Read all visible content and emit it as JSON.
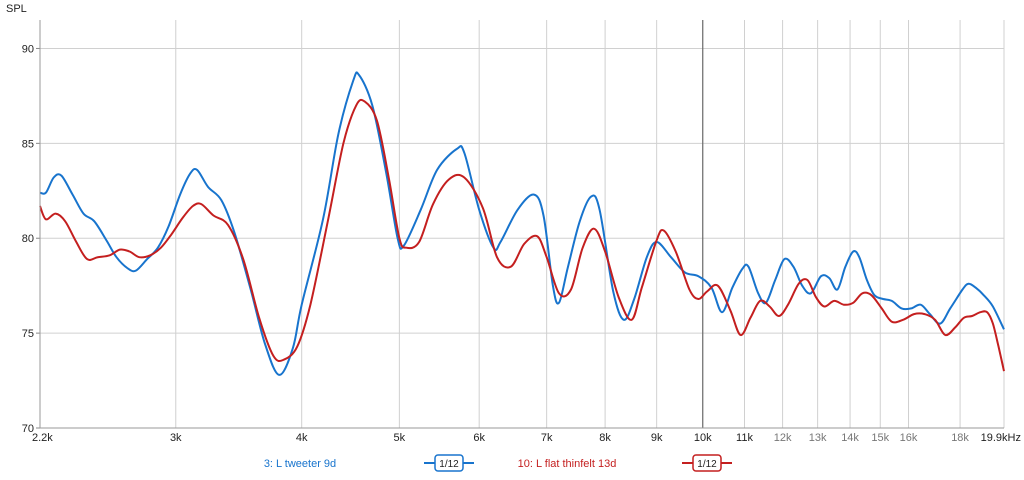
{
  "chart_data": {
    "type": "line",
    "y_axis_title": "SPL",
    "x_scale": "log",
    "xlim": [
      2200,
      19900
    ],
    "ylim": [
      70,
      91.5
    ],
    "grid": true,
    "y_ticks": [
      70,
      75,
      80,
      85,
      90
    ],
    "y_tick_labels": [
      "70",
      "75",
      "80",
      "85",
      "90"
    ],
    "x_ticks": [
      2200,
      3000,
      4000,
      5000,
      6000,
      7000,
      8000,
      9000,
      10000,
      11000,
      12000,
      13000,
      14000,
      15000,
      16000,
      18000,
      19900
    ],
    "x_tick_labels": [
      "2.2k",
      "3k",
      "4k",
      "5k",
      "6k",
      "7k",
      "8k",
      "9k",
      "10k",
      "11k",
      "12k",
      "13k",
      "14k",
      "15k",
      "16k",
      "18k",
      "19.9kHz"
    ],
    "minor_tick_indices": [
      10,
      11,
      12,
      13,
      14,
      15
    ],
    "cursor_x": 10000,
    "legend_placement": "bottom",
    "series": [
      {
        "name": "3: L tweeter 9d",
        "smoothing": "1/12",
        "color": "#1874cd",
        "points": [
          [
            2200,
            82.4
          ],
          [
            2230,
            82.4
          ],
          [
            2270,
            83.2
          ],
          [
            2310,
            83.3
          ],
          [
            2370,
            82.3
          ],
          [
            2430,
            81.3
          ],
          [
            2490,
            80.9
          ],
          [
            2560,
            79.9
          ],
          [
            2620,
            79.0
          ],
          [
            2690,
            78.4
          ],
          [
            2740,
            78.3
          ],
          [
            2810,
            78.9
          ],
          [
            2880,
            79.5
          ],
          [
            2950,
            80.6
          ],
          [
            3030,
            82.3
          ],
          [
            3100,
            83.4
          ],
          [
            3150,
            83.6
          ],
          [
            3230,
            82.7
          ],
          [
            3330,
            82.0
          ],
          [
            3430,
            80.3
          ],
          [
            3560,
            77.3
          ],
          [
            3680,
            74.4
          ],
          [
            3800,
            72.8
          ],
          [
            3920,
            74.2
          ],
          [
            4000,
            76.5
          ],
          [
            4200,
            81.0
          ],
          [
            4350,
            85.5
          ],
          [
            4500,
            88.3
          ],
          [
            4560,
            88.6
          ],
          [
            4700,
            87.0
          ],
          [
            4850,
            83.5
          ],
          [
            4980,
            80.0
          ],
          [
            5050,
            79.6
          ],
          [
            5250,
            81.5
          ],
          [
            5450,
            83.6
          ],
          [
            5700,
            84.7
          ],
          [
            5800,
            84.5
          ],
          [
            6000,
            81.5
          ],
          [
            6200,
            79.5
          ],
          [
            6300,
            79.8
          ],
          [
            6550,
            81.5
          ],
          [
            6800,
            82.3
          ],
          [
            6950,
            81.2
          ],
          [
            7100,
            77.5
          ],
          [
            7200,
            76.6
          ],
          [
            7350,
            78.5
          ],
          [
            7550,
            80.9
          ],
          [
            7750,
            82.2
          ],
          [
            7900,
            81.5
          ],
          [
            8150,
            77.2
          ],
          [
            8350,
            75.7
          ],
          [
            8550,
            76.8
          ],
          [
            8800,
            79.0
          ],
          [
            9000,
            79.8
          ],
          [
            9300,
            79.0
          ],
          [
            9600,
            78.2
          ],
          [
            9900,
            78.0
          ],
          [
            10200,
            77.4
          ],
          [
            10450,
            76.1
          ],
          [
            10700,
            77.4
          ],
          [
            10950,
            78.4
          ],
          [
            11100,
            78.5
          ],
          [
            11350,
            77.1
          ],
          [
            11550,
            76.6
          ],
          [
            11800,
            77.8
          ],
          [
            12050,
            78.9
          ],
          [
            12300,
            78.5
          ],
          [
            12550,
            77.5
          ],
          [
            12800,
            77.1
          ],
          [
            13100,
            78.0
          ],
          [
            13350,
            77.9
          ],
          [
            13600,
            77.3
          ],
          [
            13850,
            78.5
          ],
          [
            14100,
            79.3
          ],
          [
            14300,
            79.0
          ],
          [
            14550,
            77.8
          ],
          [
            14800,
            77.0
          ],
          [
            15100,
            76.8
          ],
          [
            15400,
            76.7
          ],
          [
            15750,
            76.3
          ],
          [
            16100,
            76.3
          ],
          [
            16450,
            76.5
          ],
          [
            16800,
            76.0
          ],
          [
            17200,
            75.5
          ],
          [
            17600,
            76.3
          ],
          [
            18100,
            77.3
          ],
          [
            18350,
            77.6
          ],
          [
            18650,
            77.4
          ],
          [
            19000,
            77.0
          ],
          [
            19400,
            76.4
          ],
          [
            19900,
            75.2
          ]
        ]
      },
      {
        "name": "10: L flat thinfelt 13d",
        "smoothing": "1/12",
        "color": "#c41f1f",
        "points": [
          [
            2200,
            81.7
          ],
          [
            2230,
            81.0
          ],
          [
            2280,
            81.3
          ],
          [
            2330,
            80.9
          ],
          [
            2390,
            79.8
          ],
          [
            2450,
            78.9
          ],
          [
            2510,
            79.0
          ],
          [
            2580,
            79.1
          ],
          [
            2640,
            79.4
          ],
          [
            2700,
            79.3
          ],
          [
            2760,
            79.0
          ],
          [
            2830,
            79.1
          ],
          [
            2900,
            79.5
          ],
          [
            2970,
            80.2
          ],
          [
            3050,
            81.1
          ],
          [
            3120,
            81.7
          ],
          [
            3180,
            81.8
          ],
          [
            3270,
            81.2
          ],
          [
            3380,
            80.7
          ],
          [
            3500,
            78.9
          ],
          [
            3630,
            75.8
          ],
          [
            3750,
            73.8
          ],
          [
            3840,
            73.6
          ],
          [
            3960,
            74.3
          ],
          [
            4080,
            76.5
          ],
          [
            4250,
            81.0
          ],
          [
            4400,
            85.0
          ],
          [
            4530,
            87.0
          ],
          [
            4620,
            87.2
          ],
          [
            4750,
            86.2
          ],
          [
            4880,
            83.2
          ],
          [
            5000,
            80.0
          ],
          [
            5080,
            79.5
          ],
          [
            5230,
            79.8
          ],
          [
            5400,
            81.8
          ],
          [
            5600,
            83.1
          ],
          [
            5800,
            83.2
          ],
          [
            6050,
            81.6
          ],
          [
            6250,
            79.0
          ],
          [
            6450,
            78.5
          ],
          [
            6650,
            79.7
          ],
          [
            6850,
            80.1
          ],
          [
            7000,
            79.0
          ],
          [
            7200,
            77.1
          ],
          [
            7400,
            77.3
          ],
          [
            7600,
            79.5
          ],
          [
            7800,
            80.5
          ],
          [
            8000,
            79.3
          ],
          [
            8250,
            76.9
          ],
          [
            8500,
            75.7
          ],
          [
            8700,
            77.4
          ],
          [
            9000,
            79.9
          ],
          [
            9150,
            80.4
          ],
          [
            9400,
            79.3
          ],
          [
            9700,
            77.3
          ],
          [
            9900,
            76.8
          ],
          [
            10100,
            77.2
          ],
          [
            10350,
            77.5
          ],
          [
            10650,
            76.2
          ],
          [
            10900,
            74.9
          ],
          [
            11150,
            75.8
          ],
          [
            11400,
            76.7
          ],
          [
            11650,
            76.4
          ],
          [
            11900,
            75.9
          ],
          [
            12150,
            76.5
          ],
          [
            12450,
            77.6
          ],
          [
            12700,
            77.8
          ],
          [
            12950,
            76.9
          ],
          [
            13200,
            76.4
          ],
          [
            13500,
            76.7
          ],
          [
            13800,
            76.5
          ],
          [
            14100,
            76.6
          ],
          [
            14400,
            77.1
          ],
          [
            14700,
            77.0
          ],
          [
            15050,
            76.3
          ],
          [
            15400,
            75.6
          ],
          [
            15800,
            75.7
          ],
          [
            16200,
            76.0
          ],
          [
            16600,
            76.0
          ],
          [
            17000,
            75.7
          ],
          [
            17400,
            74.9
          ],
          [
            17800,
            75.3
          ],
          [
            18150,
            75.8
          ],
          [
            18500,
            75.9
          ],
          [
            18850,
            76.1
          ],
          [
            19150,
            76.1
          ],
          [
            19400,
            75.5
          ],
          [
            19650,
            74.3
          ],
          [
            19900,
            73.0
          ]
        ]
      }
    ]
  }
}
